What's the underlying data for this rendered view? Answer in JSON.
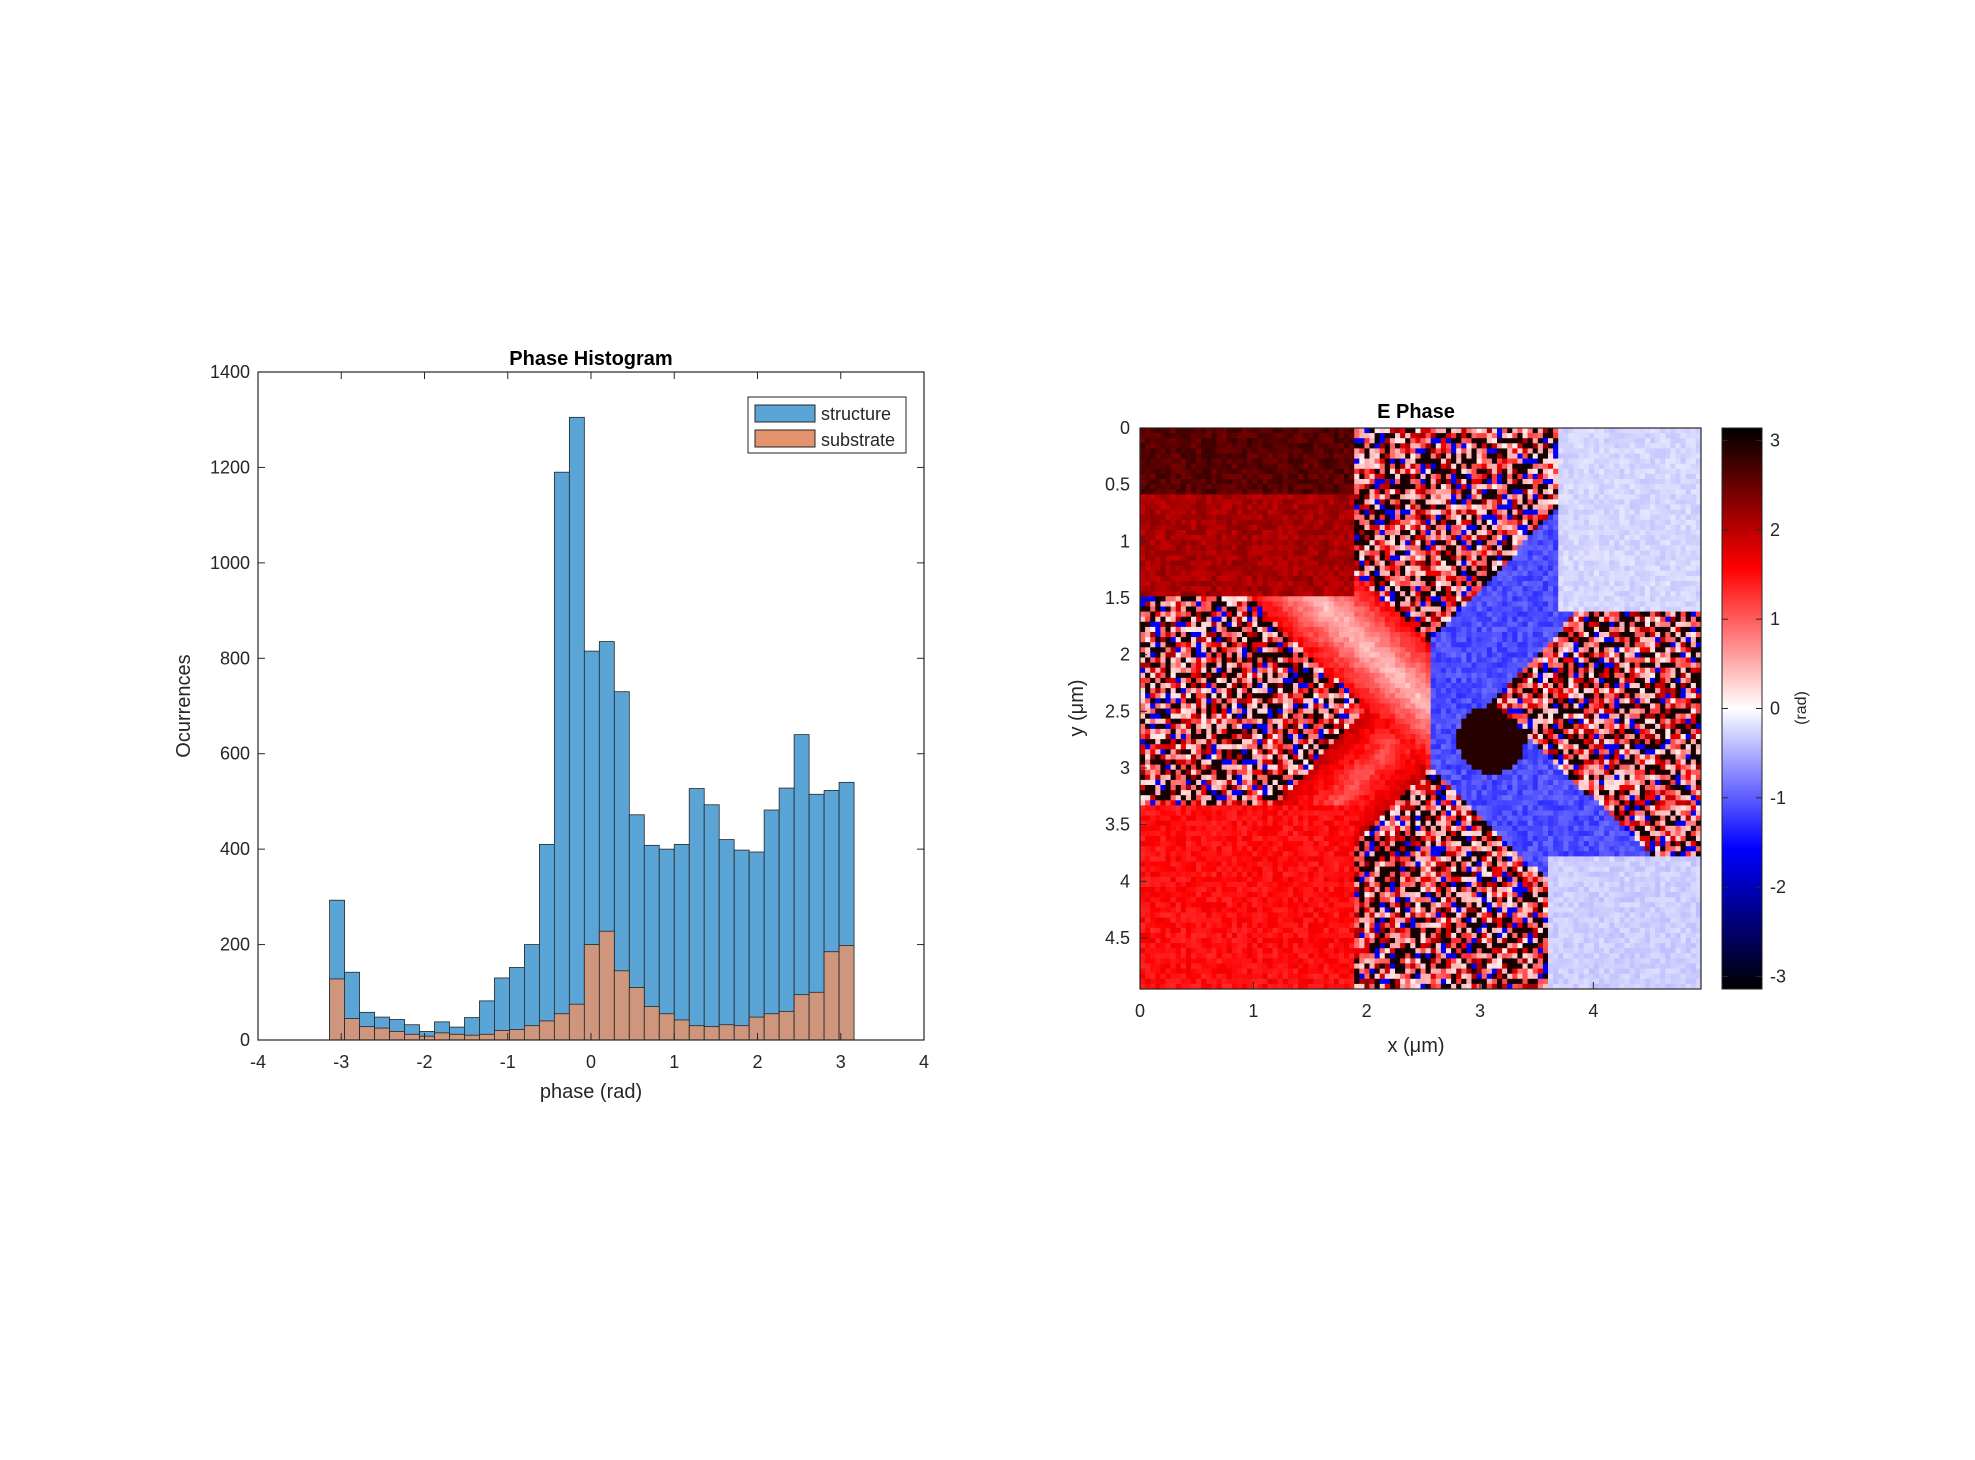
{
  "chart_data": [
    {
      "type": "bar",
      "subtype": "overlaid-histogram",
      "title": "Phase Histogram",
      "xlabel": "phase (rad)",
      "ylabel": "Ocurrences",
      "xlim": [
        -4,
        4
      ],
      "ylim": [
        0,
        1400
      ],
      "xticks": [
        "-4",
        "-3",
        "-2",
        "-1",
        "0",
        "1",
        "2",
        "3",
        "4"
      ],
      "yticks": [
        "0",
        "200",
        "400",
        "600",
        "800",
        "1000",
        "1200",
        "1400"
      ],
      "bin_width": 0.18,
      "x": [
        -3.05,
        -2.87,
        -2.69,
        -2.51,
        -2.33,
        -2.15,
        -1.97,
        -1.79,
        -1.61,
        -1.43,
        -1.25,
        -1.07,
        -0.89,
        -0.71,
        -0.53,
        -0.35,
        -0.17,
        0.01,
        0.19,
        0.37,
        0.55,
        0.73,
        0.91,
        1.09,
        1.27,
        1.45,
        1.63,
        1.81,
        1.99,
        2.17,
        2.35,
        2.53,
        2.71,
        2.89,
        3.07
      ],
      "series": [
        {
          "name": "structure",
          "color": "#5ba4d6",
          "values": [
            293,
            142,
            58,
            48,
            43,
            32,
            18,
            38,
            27,
            47,
            82,
            130,
            152,
            200,
            410,
            1190,
            1305,
            815,
            835,
            730,
            472,
            408,
            400,
            410,
            527,
            493,
            420,
            398,
            394,
            482,
            528,
            640,
            515,
            523,
            540
          ]
        },
        {
          "name": "substrate",
          "color": "#e3946c",
          "values": [
            128,
            45,
            28,
            25,
            18,
            12,
            8,
            15,
            12,
            10,
            12,
            20,
            22,
            30,
            40,
            55,
            75,
            200,
            228,
            145,
            110,
            70,
            55,
            42,
            30,
            28,
            32,
            30,
            48,
            55,
            60,
            95,
            100,
            185,
            198
          ]
        }
      ],
      "legend_position": "top-right"
    },
    {
      "type": "heatmap",
      "title": "E Phase",
      "xlabel": "x (μm)",
      "ylabel": "y (μm)",
      "xlim": [
        0,
        4.95
      ],
      "ylim": [
        0,
        4.95
      ],
      "xticks": [
        "0",
        "1",
        "2",
        "3",
        "4"
      ],
      "yticks": [
        "0",
        "0.5",
        "1",
        "1.5",
        "2",
        "2.5",
        "3",
        "3.5",
        "4",
        "4.5"
      ],
      "colorbar": {
        "label": "(rad)",
        "range": [
          -3.14,
          3.14
        ],
        "ticks": [
          "3",
          "2",
          "1",
          "0",
          "-1",
          "-2",
          "-3"
        ],
        "colors": [
          "#ffffff",
          "#ff0000",
          "#000000",
          "#0000ff"
        ]
      }
    }
  ]
}
